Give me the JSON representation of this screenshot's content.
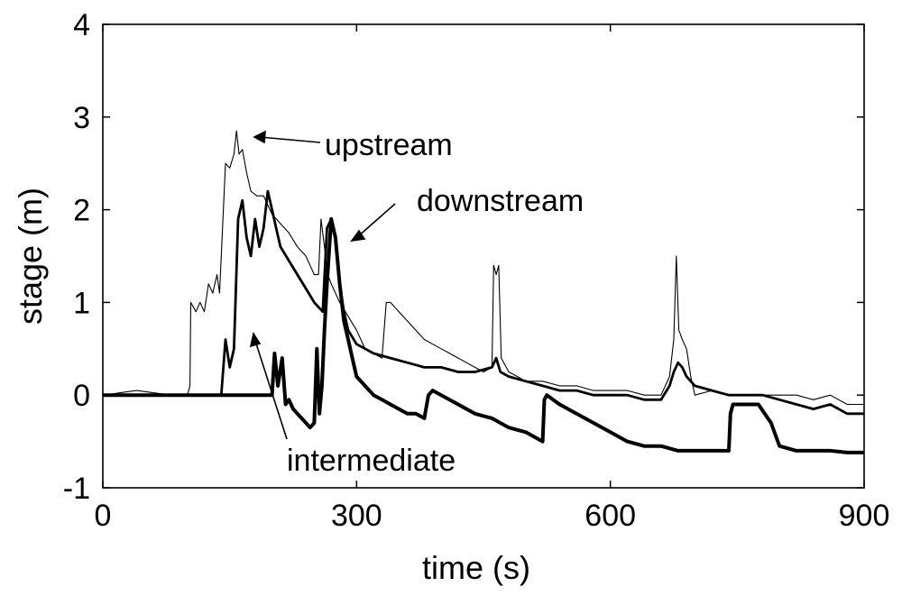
{
  "chart_data": {
    "type": "line",
    "title": "",
    "xlabel": "time (s)",
    "ylabel": "stage (m)",
    "xlim": [
      0,
      900
    ],
    "ylim": [
      -1,
      4
    ],
    "xticks": [
      0,
      300,
      600,
      900
    ],
    "yticks": [
      -1,
      0,
      1,
      2,
      3,
      4
    ],
    "grid": false,
    "legend": "none",
    "annotations": [
      {
        "text": "upstream",
        "series": "upstream"
      },
      {
        "text": "downstream",
        "series": "downstream"
      },
      {
        "text": "intermediate",
        "series": "intermediate"
      }
    ],
    "series": [
      {
        "name": "upstream",
        "style": "thin",
        "points": [
          [
            0,
            0.0
          ],
          [
            40,
            0.05
          ],
          [
            80,
            0.0
          ],
          [
            100,
            0.0
          ],
          [
            103,
            0.1
          ],
          [
            104,
            1.0
          ],
          [
            110,
            0.9
          ],
          [
            115,
            1.0
          ],
          [
            120,
            0.9
          ],
          [
            125,
            1.2
          ],
          [
            130,
            1.1
          ],
          [
            135,
            1.3
          ],
          [
            138,
            1.1
          ],
          [
            140,
            1.5
          ],
          [
            145,
            2.5
          ],
          [
            150,
            2.45
          ],
          [
            155,
            2.6
          ],
          [
            158,
            2.85
          ],
          [
            161,
            2.6
          ],
          [
            165,
            2.65
          ],
          [
            170,
            2.4
          ],
          [
            175,
            2.2
          ],
          [
            182,
            2.15
          ],
          [
            190,
            2.15
          ],
          [
            195,
            2.05
          ],
          [
            200,
            1.95
          ],
          [
            210,
            1.85
          ],
          [
            220,
            1.75
          ],
          [
            230,
            1.6
          ],
          [
            240,
            1.5
          ],
          [
            245,
            1.4
          ],
          [
            250,
            1.3
          ],
          [
            255,
            1.3
          ],
          [
            258,
            1.9
          ],
          [
            262,
            1.6
          ],
          [
            266,
            1.3
          ],
          [
            270,
            1.2
          ],
          [
            280,
            1.0
          ],
          [
            290,
            0.85
          ],
          [
            300,
            0.7
          ],
          [
            310,
            0.5
          ],
          [
            320,
            0.45
          ],
          [
            330,
            0.4
          ],
          [
            335,
            1.0
          ],
          [
            340,
            1.0
          ],
          [
            345,
            0.95
          ],
          [
            350,
            0.9
          ],
          [
            360,
            0.8
          ],
          [
            370,
            0.7
          ],
          [
            380,
            0.6
          ],
          [
            390,
            0.55
          ],
          [
            400,
            0.5
          ],
          [
            410,
            0.45
          ],
          [
            420,
            0.4
          ],
          [
            430,
            0.35
          ],
          [
            440,
            0.3
          ],
          [
            450,
            0.25
          ],
          [
            460,
            0.3
          ],
          [
            462,
            1.4
          ],
          [
            465,
            1.3
          ],
          [
            468,
            1.4
          ],
          [
            471,
            0.4
          ],
          [
            480,
            0.25
          ],
          [
            490,
            0.2
          ],
          [
            500,
            0.15
          ],
          [
            520,
            0.15
          ],
          [
            540,
            0.1
          ],
          [
            560,
            0.1
          ],
          [
            580,
            0.05
          ],
          [
            600,
            0.05
          ],
          [
            620,
            0.05
          ],
          [
            640,
            0.0
          ],
          [
            660,
            0.0
          ],
          [
            670,
            0.2
          ],
          [
            675,
            0.6
          ],
          [
            678,
            1.5
          ],
          [
            681,
            0.7
          ],
          [
            685,
            0.6
          ],
          [
            690,
            0.5
          ],
          [
            695,
            0.2
          ],
          [
            700,
            0.0
          ],
          [
            720,
            0.05
          ],
          [
            740,
            0.0
          ],
          [
            760,
            0.0
          ],
          [
            780,
            0.0
          ],
          [
            800,
            0.0
          ],
          [
            820,
            0.0
          ],
          [
            840,
            -0.05
          ],
          [
            860,
            0.0
          ],
          [
            880,
            -0.1
          ],
          [
            900,
            -0.1
          ]
        ]
      },
      {
        "name": "downstream",
        "style": "thick",
        "points": [
          [
            0,
            0.0
          ],
          [
            40,
            0.0
          ],
          [
            80,
            0.0
          ],
          [
            120,
            0.0
          ],
          [
            140,
            0.0
          ],
          [
            145,
            0.6
          ],
          [
            150,
            0.3
          ],
          [
            155,
            0.5
          ],
          [
            160,
            1.9
          ],
          [
            165,
            2.1
          ],
          [
            170,
            1.7
          ],
          [
            175,
            1.5
          ],
          [
            180,
            1.9
          ],
          [
            185,
            1.6
          ],
          [
            190,
            1.8
          ],
          [
            195,
            2.2
          ],
          [
            200,
            2.0
          ],
          [
            205,
            1.8
          ],
          [
            210,
            1.6
          ],
          [
            220,
            1.45
          ],
          [
            230,
            1.3
          ],
          [
            240,
            1.15
          ],
          [
            250,
            1.0
          ],
          [
            260,
            0.9
          ],
          [
            265,
            1.8
          ],
          [
            270,
            1.9
          ],
          [
            275,
            1.7
          ],
          [
            280,
            1.2
          ],
          [
            285,
            0.9
          ],
          [
            290,
            0.7
          ],
          [
            300,
            0.55
          ],
          [
            320,
            0.45
          ],
          [
            340,
            0.4
          ],
          [
            360,
            0.35
          ],
          [
            380,
            0.3
          ],
          [
            400,
            0.3
          ],
          [
            420,
            0.25
          ],
          [
            440,
            0.25
          ],
          [
            460,
            0.3
          ],
          [
            465,
            0.4
          ],
          [
            470,
            0.25
          ],
          [
            480,
            0.2
          ],
          [
            500,
            0.15
          ],
          [
            520,
            0.1
          ],
          [
            540,
            0.05
          ],
          [
            560,
            0.05
          ],
          [
            580,
            0.0
          ],
          [
            600,
            0.0
          ],
          [
            620,
            0.0
          ],
          [
            640,
            -0.05
          ],
          [
            660,
            -0.05
          ],
          [
            670,
            0.1
          ],
          [
            675,
            0.25
          ],
          [
            680,
            0.35
          ],
          [
            685,
            0.3
          ],
          [
            690,
            0.2
          ],
          [
            700,
            0.1
          ],
          [
            720,
            0.05
          ],
          [
            740,
            0.0
          ],
          [
            760,
            0.0
          ],
          [
            780,
            0.0
          ],
          [
            800,
            -0.05
          ],
          [
            820,
            -0.1
          ],
          [
            840,
            -0.15
          ],
          [
            860,
            -0.1
          ],
          [
            880,
            -0.2
          ],
          [
            900,
            -0.2
          ]
        ]
      },
      {
        "name": "intermediate",
        "style": "thickest",
        "points": [
          [
            0,
            0.0
          ],
          [
            50,
            0.0
          ],
          [
            100,
            0.0
          ],
          [
            150,
            0.0
          ],
          [
            190,
            0.0
          ],
          [
            200,
            0.0
          ],
          [
            203,
            0.45
          ],
          [
            207,
            0.1
          ],
          [
            212,
            0.4
          ],
          [
            216,
            -0.1
          ],
          [
            220,
            -0.05
          ],
          [
            225,
            -0.15
          ],
          [
            230,
            -0.2
          ],
          [
            235,
            -0.25
          ],
          [
            240,
            -0.3
          ],
          [
            245,
            -0.35
          ],
          [
            250,
            -0.3
          ],
          [
            253,
            0.5
          ],
          [
            256,
            -0.2
          ],
          [
            259,
            0.1
          ],
          [
            262,
            0.7
          ],
          [
            265,
            1.2
          ],
          [
            270,
            1.9
          ],
          [
            275,
            1.7
          ],
          [
            280,
            1.2
          ],
          [
            285,
            0.8
          ],
          [
            290,
            0.6
          ],
          [
            295,
            0.4
          ],
          [
            300,
            0.2
          ],
          [
            310,
            0.1
          ],
          [
            320,
            0.0
          ],
          [
            330,
            -0.05
          ],
          [
            340,
            -0.1
          ],
          [
            350,
            -0.15
          ],
          [
            360,
            -0.2
          ],
          [
            370,
            -0.2
          ],
          [
            380,
            -0.25
          ],
          [
            385,
            0.0
          ],
          [
            390,
            0.05
          ],
          [
            400,
            0.0
          ],
          [
            420,
            -0.1
          ],
          [
            440,
            -0.2
          ],
          [
            460,
            -0.25
          ],
          [
            480,
            -0.35
          ],
          [
            500,
            -0.4
          ],
          [
            520,
            -0.5
          ],
          [
            522,
            -0.05
          ],
          [
            525,
            0.0
          ],
          [
            540,
            -0.1
          ],
          [
            560,
            -0.2
          ],
          [
            580,
            -0.3
          ],
          [
            600,
            -0.4
          ],
          [
            620,
            -0.5
          ],
          [
            640,
            -0.55
          ],
          [
            660,
            -0.55
          ],
          [
            680,
            -0.6
          ],
          [
            700,
            -0.6
          ],
          [
            720,
            -0.6
          ],
          [
            740,
            -0.6
          ],
          [
            742,
            -0.2
          ],
          [
            745,
            -0.1
          ],
          [
            760,
            -0.1
          ],
          [
            775,
            -0.1
          ],
          [
            790,
            -0.3
          ],
          [
            800,
            -0.55
          ],
          [
            820,
            -0.6
          ],
          [
            840,
            -0.6
          ],
          [
            860,
            -0.6
          ],
          [
            880,
            -0.62
          ],
          [
            900,
            -0.62
          ]
        ]
      }
    ]
  }
}
